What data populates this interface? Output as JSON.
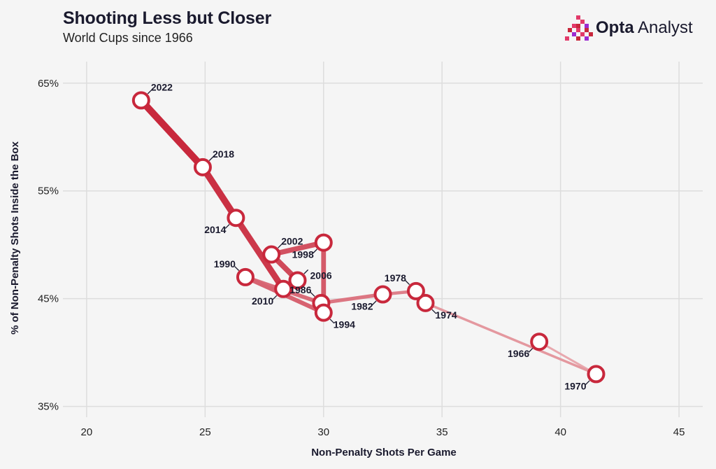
{
  "header": {
    "title": "Shooting Less but Closer",
    "subtitle": "World Cups since 1966"
  },
  "brand": {
    "name_bold": "Opta",
    "name_rest": " Analyst",
    "logo_icon": "opta-pixel-logo-icon"
  },
  "colors": {
    "marker": "#c8283c",
    "line_recent": "#c8283c",
    "line_old": "#e8a8ae",
    "grid": "#dddddd",
    "background": "#f5f5f5"
  },
  "chart_data": {
    "type": "line",
    "title": "Shooting Less but Closer",
    "subtitle": "World Cups since 1966",
    "xlabel": "Non-Penalty Shots Per Game",
    "ylabel": "% of Non-Penalty Shots Inside the Box",
    "xlim": [
      19,
      46
    ],
    "ylim": [
      34,
      67
    ],
    "xticks": [
      20,
      25,
      30,
      35,
      40,
      45
    ],
    "yticks": [
      35,
      45,
      55,
      65
    ],
    "ytick_labels": [
      "35%",
      "45%",
      "55%",
      "65%"
    ],
    "grid": true,
    "points": [
      {
        "year": "1966",
        "x": 39.1,
        "y": 41.0,
        "label_pos": "bl"
      },
      {
        "year": "1970",
        "x": 41.5,
        "y": 38.0,
        "label_pos": "bl"
      },
      {
        "year": "1974",
        "x": 34.3,
        "y": 44.6,
        "label_pos": "br"
      },
      {
        "year": "1978",
        "x": 33.9,
        "y": 45.7,
        "label_pos": "tl"
      },
      {
        "year": "1982",
        "x": 32.5,
        "y": 45.4,
        "label_pos": "bl"
      },
      {
        "year": "1986",
        "x": 29.9,
        "y": 44.6,
        "label_pos": "tl"
      },
      {
        "year": "1990",
        "x": 26.7,
        "y": 47.0,
        "label_pos": "tl"
      },
      {
        "year": "1994",
        "x": 30.0,
        "y": 43.7,
        "label_pos": "br"
      },
      {
        "year": "1998",
        "x": 30.0,
        "y": 50.2,
        "label_pos": "bl"
      },
      {
        "year": "2002",
        "x": 27.8,
        "y": 49.1,
        "label_pos": "tr"
      },
      {
        "year": "2006",
        "x": 28.9,
        "y": 46.7,
        "label_pos": "r"
      },
      {
        "year": "2010",
        "x": 28.3,
        "y": 45.9,
        "label_pos": "bl"
      },
      {
        "year": "2014",
        "x": 26.3,
        "y": 52.5,
        "label_pos": "bl"
      },
      {
        "year": "2018",
        "x": 24.9,
        "y": 57.2,
        "label_pos": "tr"
      },
      {
        "year": "2022",
        "x": 22.3,
        "y": 63.4,
        "label_pos": "tr"
      }
    ]
  }
}
